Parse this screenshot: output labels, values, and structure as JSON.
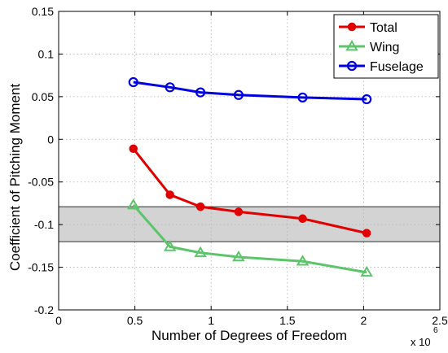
{
  "chart_data": {
    "type": "line",
    "xlabel": "Number of Degrees of Freedom",
    "ylabel": "Coefficient of Pitching Moment",
    "x_multiplier": {
      "base": "x 10",
      "exponent": "6"
    },
    "xlim": [
      0,
      2.5
    ],
    "ylim": [
      -0.2,
      0.15
    ],
    "x_ticks": [
      0,
      0.5,
      1,
      1.5,
      2,
      2.5
    ],
    "x_tick_labels": [
      "0",
      "0.5",
      "1",
      "1.5",
      "2",
      "2.5"
    ],
    "y_ticks": [
      -0.2,
      -0.15,
      -0.1,
      -0.05,
      0,
      0.05,
      0.1,
      0.15
    ],
    "y_tick_labels": [
      "-0.2",
      "-0.15",
      "-0.1",
      "-0.05",
      "0",
      "0.05",
      "0.1",
      "0.15"
    ],
    "grid": true,
    "legend_position": "top-right",
    "band": {
      "y_low": -0.12,
      "y_high": -0.079,
      "color": "#d3d3d3"
    },
    "series": [
      {
        "name": "Total",
        "color": "#e00000",
        "marker": "filled-circle",
        "x": [
          0.49,
          0.73,
          0.93,
          1.18,
          1.6,
          2.02
        ],
        "y": [
          -0.011,
          -0.065,
          -0.079,
          -0.085,
          -0.093,
          -0.11
        ]
      },
      {
        "name": "Wing",
        "color": "#5cc46a",
        "marker": "triangle",
        "x": [
          0.49,
          0.73,
          0.93,
          1.18,
          1.6,
          2.02
        ],
        "y": [
          -0.077,
          -0.126,
          -0.133,
          -0.138,
          -0.143,
          -0.156
        ]
      },
      {
        "name": "Fuselage",
        "color": "#0000e0",
        "marker": "open-circle",
        "x": [
          0.49,
          0.73,
          0.93,
          1.18,
          1.6,
          2.02
        ],
        "y": [
          0.067,
          0.061,
          0.055,
          0.052,
          0.049,
          0.047
        ]
      }
    ]
  }
}
